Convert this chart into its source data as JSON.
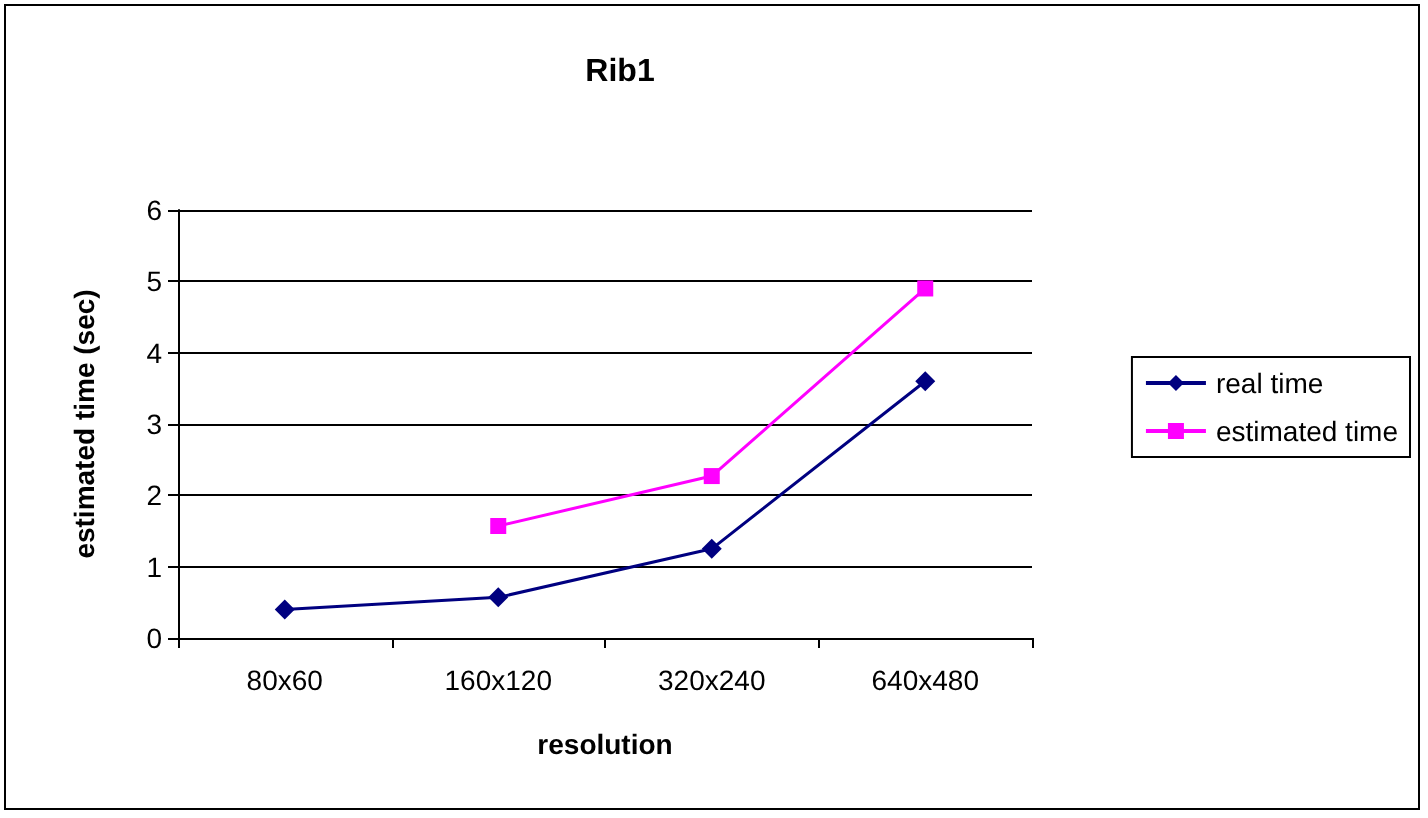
{
  "chart_data": {
    "type": "line",
    "title": "Rib1",
    "xlabel": "resolution",
    "ylabel": "estimated time (sec)",
    "categories": [
      "80x60",
      "160x120",
      "320x240",
      "640x480"
    ],
    "series": [
      {
        "name": "real time",
        "color": "#000080",
        "marker": "diamond",
        "values": [
          0.4,
          0.57,
          1.25,
          3.6
        ]
      },
      {
        "name": "estimated time",
        "color": "#ff00ff",
        "marker": "square",
        "values": [
          null,
          1.57,
          2.27,
          4.9
        ]
      }
    ],
    "ylim": [
      0,
      6
    ],
    "yticks": [
      0,
      1,
      2,
      3,
      4,
      5,
      6
    ],
    "grid": "y",
    "legend": "right",
    "line_style": "solid"
  }
}
